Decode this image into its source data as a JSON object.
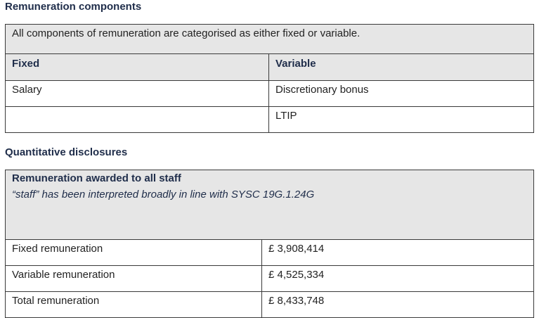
{
  "remuneration_components": {
    "heading": "Remuneration components",
    "intro": "All components of remuneration are categorised as either fixed or variable.",
    "columns": [
      "Fixed",
      "Variable"
    ],
    "rows": [
      [
        "Salary",
        "Discretionary bonus"
      ],
      [
        "",
        "LTIP"
      ]
    ]
  },
  "quantitative_disclosures": {
    "heading": "Quantitative disclosures",
    "table_title": "Remuneration awarded to all staff",
    "note": "“staff” has been interpreted broadly in line with SYSC 19G.1.24G",
    "rows": [
      [
        "Fixed remuneration",
        "£ 3,908,414"
      ],
      [
        "Variable remuneration",
        "£ 4,525,334"
      ],
      [
        "Total remuneration",
        "£ 8,433,748"
      ]
    ]
  },
  "colors": {
    "heading_text": "#1f2d4a",
    "shaded_background": "#e6e6e6",
    "border": "#3a3a3a"
  }
}
